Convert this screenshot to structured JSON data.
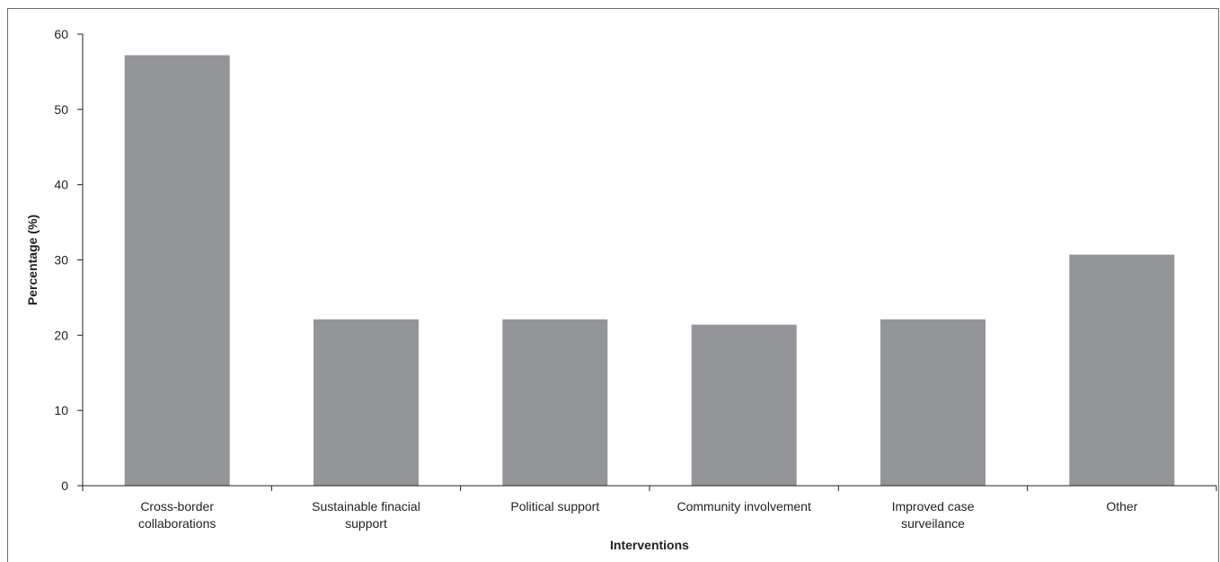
{
  "chart_data": {
    "type": "bar",
    "title": "",
    "xlabel": "Interventions",
    "ylabel": "Percentage (%)",
    "ylim": [
      0,
      60
    ],
    "yticks": [
      0,
      10,
      20,
      30,
      40,
      50,
      60
    ],
    "grid": false,
    "legend": "none",
    "bar_color": "#939598",
    "axis_color": "#231f20",
    "categories": [
      [
        "Cross-border",
        "collaborations"
      ],
      [
        "Sustainable finacial",
        "support"
      ],
      [
        "Political support"
      ],
      [
        "Community involvement"
      ],
      [
        "Improved case",
        "surveilance"
      ],
      [
        "Other"
      ]
    ],
    "values": [
      57.2,
      22.1,
      22.1,
      21.4,
      22.1,
      30.7
    ]
  }
}
